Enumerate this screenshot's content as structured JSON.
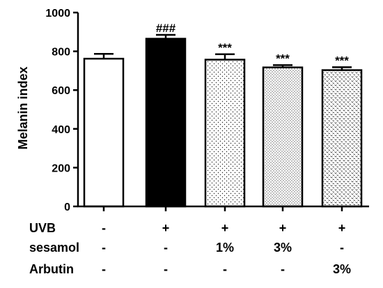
{
  "chart_data": {
    "type": "bar",
    "title": "",
    "xlabel": "",
    "ylabel": "Melanin index",
    "ylim": [
      0,
      1000
    ],
    "yticks": [
      0,
      200,
      400,
      600,
      800,
      1000
    ],
    "grid": false,
    "legend": "none",
    "bars": [
      {
        "value": 762,
        "error": 25,
        "annotation": "",
        "fill": "white"
      },
      {
        "value": 865,
        "error": 20,
        "annotation": "###",
        "fill": "black"
      },
      {
        "value": 757,
        "error": 28,
        "annotation": "***",
        "fill": "dots"
      },
      {
        "value": 717,
        "error": 12,
        "annotation": "***",
        "fill": "dots-dense"
      },
      {
        "value": 703,
        "error": 15,
        "annotation": "***",
        "fill": "chevrons"
      }
    ],
    "treatment_rows": [
      {
        "label": "UVB",
        "values": [
          "-",
          "+",
          "+",
          "+",
          "+"
        ]
      },
      {
        "label": "sesamol",
        "values": [
          "-",
          "-",
          "1%",
          "3%",
          "-"
        ]
      },
      {
        "label": "Arbutin",
        "values": [
          "-",
          "-",
          "-",
          "-",
          "3%"
        ]
      }
    ]
  },
  "colors": {
    "axis": "#000000",
    "bar_outline": "#000000",
    "background": "#ffffff"
  }
}
